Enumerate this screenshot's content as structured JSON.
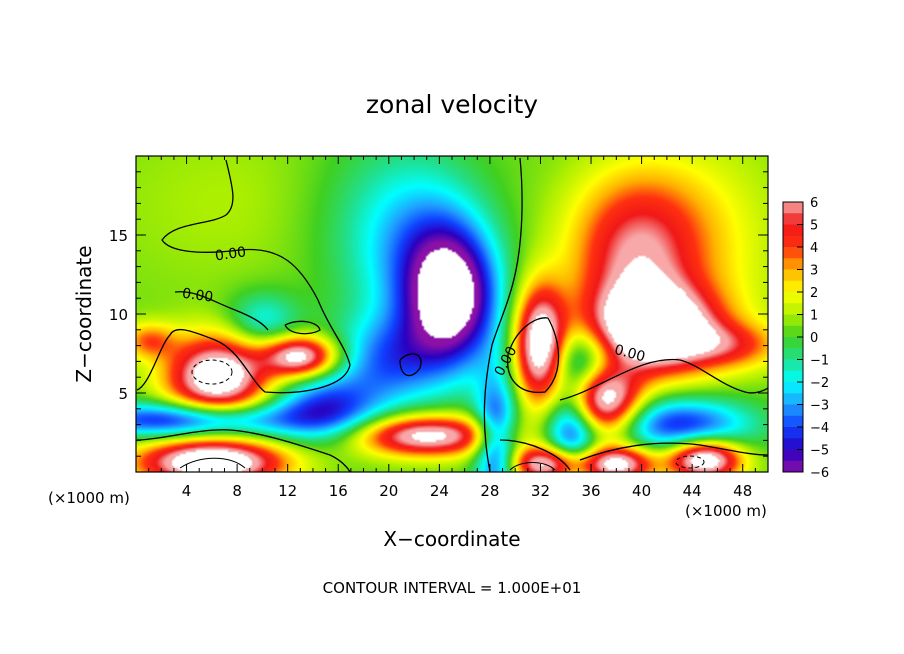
{
  "chart_data": {
    "type": "heatmap",
    "title": "zonal velocity",
    "xlabel": "X−coordinate",
    "ylabel": "Z−coordinate",
    "x_unit_left": "(×1000 m)",
    "x_unit_right": "(×1000 m)",
    "x_ticks": [
      "4",
      "8",
      "12",
      "16",
      "20",
      "24",
      "28",
      "32",
      "36",
      "40",
      "44",
      "48"
    ],
    "y_ticks": [
      "5",
      "10",
      "15"
    ],
    "xlim": [
      0,
      50
    ],
    "ylim": [
      0,
      20
    ],
    "colorbar": {
      "ticks": [
        "6",
        "5",
        "4",
        "3",
        "2",
        "1",
        "0",
        "−1",
        "−2",
        "−3",
        "−4",
        "−5",
        "−6"
      ],
      "range": [
        -6,
        6
      ],
      "over_color": "#ffffff",
      "under_color": "#ffffff",
      "stops": [
        {
          "v": -6,
          "color": "#8a10a8"
        },
        {
          "v": -5,
          "color": "#2a00c0"
        },
        {
          "v": -4,
          "color": "#1040ff"
        },
        {
          "v": -3,
          "color": "#20a0ff"
        },
        {
          "v": -2,
          "color": "#00ffff"
        },
        {
          "v": -1,
          "color": "#20e090"
        },
        {
          "v": 0,
          "color": "#40d020"
        },
        {
          "v": 1,
          "color": "#b0f000"
        },
        {
          "v": 2,
          "color": "#ffff00"
        },
        {
          "v": 3,
          "color": "#ffb000"
        },
        {
          "v": 4,
          "color": "#ff3010"
        },
        {
          "v": 5,
          "color": "#f01818"
        },
        {
          "v": 6,
          "color": "#f8a8a8"
        }
      ]
    },
    "contour_labels": [
      "0.00",
      "0.00",
      "0.00",
      "0.00"
    ],
    "footer": "CONTOUR INTERVAL = 1.000E+01",
    "field_features": [
      {
        "x": 25,
        "z": 11,
        "amp": -7.5,
        "sx": 2.5,
        "sz": 3.0
      },
      {
        "x": 22.5,
        "z": 14,
        "amp": -3.0,
        "sx": 3.5,
        "sz": 4.0
      },
      {
        "x": 20,
        "z": 7,
        "amp": -3.5,
        "sx": 3.0,
        "sz": 2.0
      },
      {
        "x": 39.5,
        "z": 12.5,
        "amp": 4.5,
        "sx": 3.5,
        "sz": 3.5
      },
      {
        "x": 41,
        "z": 9,
        "amp": 8.0,
        "sx": 3.5,
        "sz": 1.8
      },
      {
        "x": 40,
        "z": 16,
        "amp": 1.8,
        "sx": 4.0,
        "sz": 3.0
      },
      {
        "x": 32,
        "z": 8,
        "amp": 8.0,
        "sx": 1.4,
        "sz": 2.5
      },
      {
        "x": 6.5,
        "z": 6,
        "amp": 8.0,
        "sx": 2.8,
        "sz": 1.8
      },
      {
        "x": 13,
        "z": 7.3,
        "amp": 7.0,
        "sx": 2.0,
        "sz": 0.9
      },
      {
        "x": 37,
        "z": 4.5,
        "amp": 8.0,
        "sx": 2.0,
        "sz": 1.6
      },
      {
        "x": 23,
        "z": 2.3,
        "amp": 7.0,
        "sx": 4.0,
        "sz": 0.9
      },
      {
        "x": 6,
        "z": 0.6,
        "amp": 8.5,
        "sx": 4.0,
        "sz": 1.0
      },
      {
        "x": 32.5,
        "z": 0.5,
        "amp": 7.0,
        "sx": 2.0,
        "sz": 0.8
      },
      {
        "x": 38,
        "z": 0.5,
        "amp": 7.0,
        "sx": 2.0,
        "sz": 0.8
      },
      {
        "x": 45,
        "z": 0.8,
        "amp": 8.0,
        "sx": 2.0,
        "sz": 0.9
      },
      {
        "x": 4,
        "z": 3.3,
        "amp": -5.5,
        "sx": 6.0,
        "sz": 0.8
      },
      {
        "x": 15,
        "z": 4.0,
        "amp": -4.5,
        "sx": 3.0,
        "sz": 1.5
      },
      {
        "x": 28.5,
        "z": 2.0,
        "amp": -5.0,
        "sx": 1.2,
        "sz": 3.0
      },
      {
        "x": 34.5,
        "z": 2.5,
        "amp": -5.0,
        "sx": 1.5,
        "sz": 2.0
      },
      {
        "x": 43,
        "z": 3.0,
        "amp": -5.0,
        "sx": 4.0,
        "sz": 1.2
      },
      {
        "x": 35.5,
        "z": 7.0,
        "amp": -4.0,
        "sx": 2.0,
        "sz": 1.5
      },
      {
        "x": 10,
        "z": 9.5,
        "amp": -2.5,
        "sx": 2.0,
        "sz": 1.3
      },
      {
        "x": 47,
        "z": 8.0,
        "amp": 3.0,
        "sx": 3.0,
        "sz": 1.0
      },
      {
        "x": 1,
        "z": 8.3,
        "amp": 3.0,
        "sx": 1.5,
        "sz": 0.8
      },
      {
        "x": 8,
        "z": 17,
        "amp": 0.6,
        "sx": 8.0,
        "sz": 4.0
      },
      {
        "x": 46,
        "z": 14,
        "amp": 1.2,
        "sx": 4.0,
        "sz": 5.0
      },
      {
        "x": 18,
        "z": 16,
        "amp": -1.0,
        "sx": 4.0,
        "sz": 4.0
      }
    ]
  }
}
